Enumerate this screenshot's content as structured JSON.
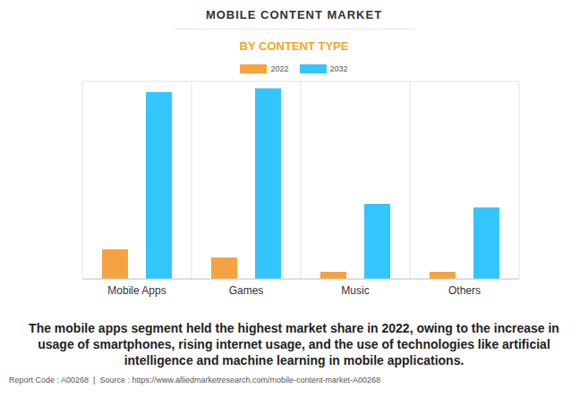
{
  "chart_data": {
    "type": "bar",
    "title": "MOBILE CONTENT MARKET",
    "subtitle": "BY CONTENT TYPE",
    "categories": [
      "Mobile Apps",
      "Games",
      "Music",
      "Others"
    ],
    "series": [
      {
        "name": "2022",
        "color": "#f4a340",
        "values": [
          1.2,
          0.87,
          0.29,
          0.29
        ]
      },
      {
        "name": "2032",
        "color": "#33c6fd",
        "values": [
          7.57,
          7.72,
          3.04,
          2.9
        ]
      }
    ],
    "ylim": [
      0,
      8
    ],
    "yticks": [
      0,
      1,
      2,
      3,
      4,
      5,
      6,
      7,
      8
    ],
    "grid": true,
    "tick_labels": "x",
    "annotations": [
      "The mobile apps segment held the highest market share in 2022, owing to the increase in usage of smartphones, rising internet usage, and the use of technologies like artificial intelligence and machine learning in mobile applications.",
      "Report Code : A00268  |  Source : https://www.alliedmarketresearch.com/mobile-content-market-A00268"
    ]
  }
}
